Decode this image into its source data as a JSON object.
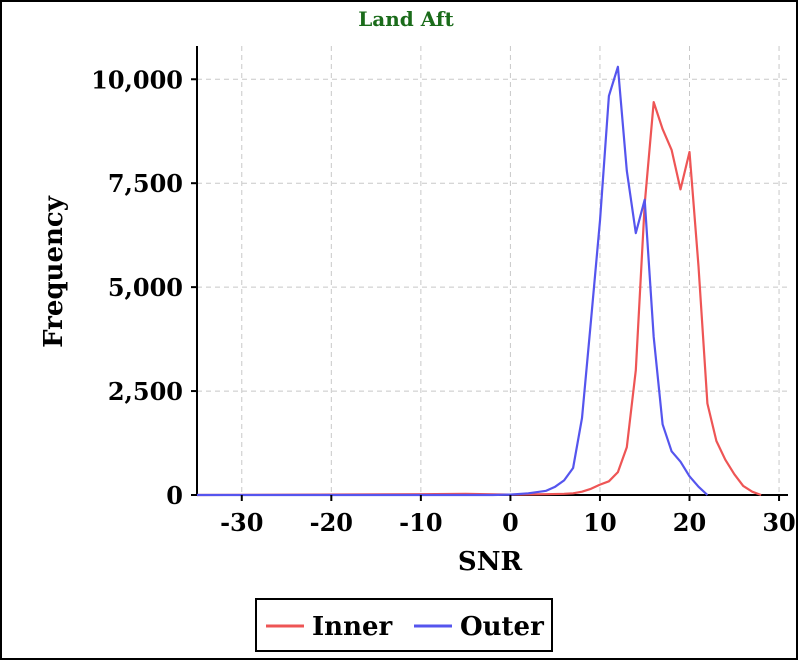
{
  "chart_data": {
    "type": "line",
    "title": "Land Aft",
    "title_color": "#1a6b1a",
    "xlabel": "SNR",
    "ylabel": "Frequency",
    "xlim": [
      -35,
      31
    ],
    "ylim": [
      0,
      10800
    ],
    "x_ticks": [
      -30,
      -20,
      -10,
      0,
      10,
      20,
      30
    ],
    "x_tick_labels": [
      "-30",
      "-20",
      "-10",
      "0",
      "10",
      "20",
      "30"
    ],
    "y_ticks": [
      0,
      2500,
      5000,
      7500,
      10000
    ],
    "y_tick_labels": [
      "0",
      "2,500",
      "5,000",
      "7,500",
      "10,000"
    ],
    "grid": true,
    "legend_position": "bottom",
    "series": [
      {
        "name": "Inner",
        "color": "#ee5555",
        "x": [
          -35,
          -10,
          -5,
          0,
          2,
          4,
          6,
          7,
          8,
          9,
          10,
          11,
          12,
          13,
          14,
          15,
          16,
          17,
          18,
          19,
          20,
          21,
          22,
          23,
          24,
          25,
          26,
          27,
          28
        ],
        "y": [
          0,
          20,
          30,
          10,
          15,
          20,
          30,
          40,
          80,
          150,
          250,
          330,
          550,
          1150,
          3000,
          7000,
          9450,
          8800,
          8300,
          7350,
          8250,
          5500,
          2200,
          1300,
          850,
          500,
          220,
          80,
          0
        ]
      },
      {
        "name": "Outer",
        "color": "#5555ee",
        "x": [
          -35,
          -2,
          0,
          2,
          4,
          5,
          6,
          7,
          8,
          9,
          10,
          11,
          12,
          13,
          14,
          15,
          16,
          17,
          18,
          19,
          20,
          21,
          22
        ],
        "y": [
          0,
          0,
          10,
          40,
          100,
          200,
          350,
          650,
          1850,
          4200,
          6600,
          9600,
          10300,
          7800,
          6300,
          7100,
          3800,
          1700,
          1050,
          800,
          450,
          200,
          0
        ]
      }
    ]
  }
}
